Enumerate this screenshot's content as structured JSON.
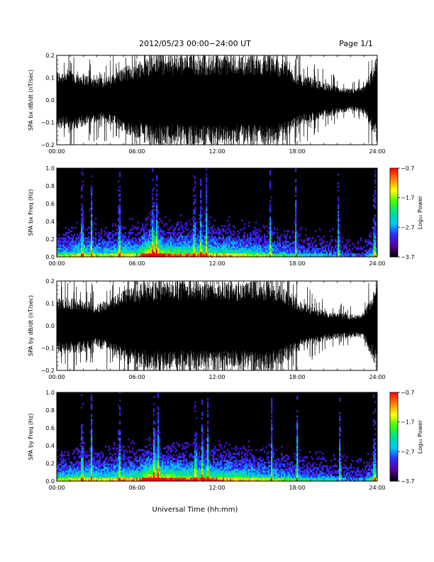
{
  "header": {
    "title": "2012/05/23  00:00−24:00 UT",
    "page": "Page 1/1"
  },
  "footer": {
    "xlabel": "Universal Time (hh:mm)"
  },
  "colors": {
    "spectrogram_scale": [
      "#000000",
      "#5a00a0",
      "#2a2aff",
      "#00c8ff",
      "#00e090",
      "#40ff00",
      "#ffff00",
      "#ff8000",
      "#ff0000"
    ]
  },
  "chart_data": [
    {
      "type": "line",
      "name": "bx-dbdt",
      "ylabel": "SPA bx dB/dt (nT/sec)",
      "xlim": [
        0,
        24
      ],
      "ylim": [
        -0.2,
        0.2
      ],
      "x_ticks": [
        "00:00",
        "06:00",
        "12:00",
        "18:00",
        "24:00"
      ],
      "y_ticks": [
        "−0.2",
        "−0.1",
        "0.0",
        "0.1",
        "0.2"
      ],
      "envelope_x": [
        0,
        1,
        2,
        3,
        4,
        5,
        6,
        7,
        8,
        9,
        10,
        11,
        12,
        13,
        14,
        15,
        16,
        17,
        18,
        19,
        20,
        21,
        22,
        23,
        24
      ],
      "envelope_amp": [
        0.13,
        0.14,
        0.12,
        0.1,
        0.11,
        0.15,
        0.17,
        0.2,
        0.2,
        0.2,
        0.2,
        0.2,
        0.2,
        0.2,
        0.2,
        0.2,
        0.2,
        0.18,
        0.12,
        0.1,
        0.08,
        0.06,
        0.05,
        0.06,
        0.2
      ]
    },
    {
      "type": "heatmap",
      "name": "bx-freq",
      "ylabel": "SPA bx Freq (Hz)",
      "xlim": [
        0,
        24
      ],
      "ylim": [
        0,
        1
      ],
      "x_ticks": [
        "00:00",
        "06:00",
        "12:00",
        "18:00",
        "24:00"
      ],
      "y_ticks": [
        "0.0",
        "0.2",
        "0.4",
        "0.6",
        "0.8",
        "1.0"
      ],
      "colorbar_label": "Log₁₀ Power",
      "colorbar_range": [
        -3.7,
        -0.7
      ],
      "colorbar_ticks": [
        "−0.7",
        "−1.7",
        "−2.7",
        "−3.7"
      ],
      "activity_x": [
        0,
        1,
        2,
        3,
        4,
        5,
        6,
        7,
        8,
        9,
        10,
        11,
        12,
        13,
        14,
        15,
        16,
        17,
        18,
        19,
        20,
        21,
        22,
        23,
        24
      ],
      "activity": [
        0.45,
        0.5,
        0.55,
        0.5,
        0.5,
        0.6,
        0.55,
        0.95,
        0.75,
        0.7,
        0.65,
        0.65,
        0.6,
        0.6,
        0.55,
        0.5,
        0.45,
        0.4,
        0.35,
        0.3,
        0.3,
        0.25,
        0.2,
        0.2,
        0.5
      ],
      "spike_times": [
        1.9,
        2.6,
        4.7,
        7.2,
        7.5,
        10.3,
        10.8,
        11.2,
        16.0,
        17.9,
        21.1,
        23.8
      ]
    },
    {
      "type": "line",
      "name": "by-dbdt",
      "ylabel": "SPA by dB/dt (nT/sec)",
      "xlim": [
        0,
        24
      ],
      "ylim": [
        -0.2,
        0.2
      ],
      "x_ticks": [
        "00:00",
        "06:00",
        "12:00",
        "18:00",
        "24:00"
      ],
      "y_ticks": [
        "−0.2",
        "−0.1",
        "0.0",
        "0.1",
        "0.2"
      ],
      "envelope_x": [
        0,
        1,
        2,
        3,
        4,
        5,
        6,
        7,
        8,
        9,
        10,
        11,
        12,
        13,
        14,
        15,
        16,
        17,
        18,
        19,
        20,
        21,
        22,
        23,
        24
      ],
      "envelope_amp": [
        0.12,
        0.13,
        0.12,
        0.1,
        0.12,
        0.17,
        0.19,
        0.2,
        0.2,
        0.2,
        0.2,
        0.2,
        0.2,
        0.2,
        0.2,
        0.2,
        0.2,
        0.17,
        0.12,
        0.09,
        0.07,
        0.06,
        0.05,
        0.06,
        0.2
      ]
    },
    {
      "type": "heatmap",
      "name": "by-freq",
      "ylabel": "SPA by Freq (Hz)",
      "xlim": [
        0,
        24
      ],
      "ylim": [
        0,
        1
      ],
      "x_ticks": [
        "00:00",
        "06:00",
        "12:00",
        "18:00",
        "24:00"
      ],
      "y_ticks": [
        "0.0",
        "0.2",
        "0.4",
        "0.6",
        "0.8",
        "1.0"
      ],
      "colorbar_label": "Log₁₀ Power",
      "colorbar_range": [
        -3.7,
        -0.7
      ],
      "colorbar_ticks": [
        "−0.7",
        "−1.7",
        "−2.7",
        "−3.7"
      ],
      "activity_x": [
        0,
        1,
        2,
        3,
        4,
        5,
        6,
        7,
        8,
        9,
        10,
        11,
        12,
        13,
        14,
        15,
        16,
        17,
        18,
        19,
        20,
        21,
        22,
        23,
        24
      ],
      "activity": [
        0.5,
        0.55,
        0.6,
        0.55,
        0.55,
        0.65,
        0.6,
        0.95,
        0.8,
        0.75,
        0.7,
        0.7,
        0.65,
        0.65,
        0.6,
        0.55,
        0.5,
        0.45,
        0.4,
        0.35,
        0.35,
        0.3,
        0.25,
        0.25,
        0.55
      ],
      "spike_times": [
        1.9,
        2.6,
        4.7,
        7.3,
        7.6,
        10.4,
        10.9,
        11.3,
        16.1,
        18.0,
        21.2,
        23.8
      ]
    }
  ]
}
